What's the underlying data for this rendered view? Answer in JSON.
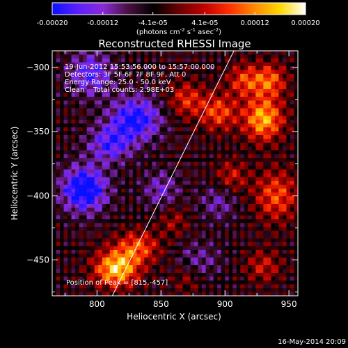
{
  "chart_data": {
    "type": "heatmap",
    "title": "Reconstructed RHESSI Image",
    "xlabel": "Heliocentric X (arcsec)",
    "ylabel": "Heliocentric Y (arcsec)",
    "xlim": [
      765,
      957
    ],
    "ylim": [
      -478,
      -287
    ],
    "x_ticks": [
      800,
      850,
      900,
      950
    ],
    "y_ticks": [
      -300,
      -350,
      -400,
      -450
    ],
    "colorbar": {
      "ticks": [
        "-0.00020",
        "-0.00012",
        "-4.1e-05",
        "4.1e-05",
        "0.00012",
        "0.00020"
      ],
      "tick_values": [
        -0.0002,
        -0.00012,
        -4.1e-05,
        4.1e-05,
        0.00012,
        0.0002
      ],
      "range": [
        -0.0002,
        0.0002
      ],
      "units_label": "(photons cm",
      "units_exp1": "-2",
      "units_mid": " s",
      "units_exp2": "-1",
      "units_mid2": " asec",
      "units_exp3": "-2",
      "units_end": ")",
      "colors": [
        "#0a10ff",
        "#5a20ff",
        "#8a2ad8",
        "#4a1040",
        "#000000",
        "#6a0000",
        "#c00000",
        "#ff3000",
        "#ff8a00",
        "#ffd800",
        "#ffffff"
      ]
    },
    "annotations": [
      "19-Jun-2012 15:53:56.000 to 15:57:00.000",
      "Detectors: 3F 5F 6F 7F 8F 9F, Att 0",
      "Energy Range: 25.0 - 50.0 keV",
      "Clean    Total counts: 2.98E+03"
    ],
    "peak_label": "Position of Peak = [815,-457]",
    "peak": [
      815,
      -457
    ],
    "limb_line": [
      [
        812,
        -478
      ],
      [
        907,
        -287
      ]
    ],
    "sources": [
      {
        "x": 815,
        "y": -457,
        "amp": 0.0002,
        "sx": 12,
        "sy": 10
      },
      {
        "x": 832,
        "y": -440,
        "amp": 0.00012,
        "sx": 12,
        "sy": 9
      },
      {
        "x": 930,
        "y": -340,
        "amp": 0.00018,
        "sx": 11,
        "sy": 12
      },
      {
        "x": 935,
        "y": -310,
        "amp": 0.00013,
        "sx": 9,
        "sy": 9
      },
      {
        "x": 915,
        "y": -310,
        "amp": 0.00011,
        "sx": 9,
        "sy": 9
      },
      {
        "x": 870,
        "y": -325,
        "amp": 0.0001,
        "sx": 10,
        "sy": 10
      },
      {
        "x": 895,
        "y": -335,
        "amp": 0.00012,
        "sx": 10,
        "sy": 10
      },
      {
        "x": 940,
        "y": -400,
        "amp": 0.00012,
        "sx": 12,
        "sy": 14
      },
      {
        "x": 905,
        "y": -385,
        "amp": 8e-05,
        "sx": 9,
        "sy": 9
      },
      {
        "x": 930,
        "y": -455,
        "amp": 8e-05,
        "sx": 10,
        "sy": 9
      },
      {
        "x": 860,
        "y": -420,
        "amp": 6e-05,
        "sx": 8,
        "sy": 8
      },
      {
        "x": 870,
        "y": -465,
        "amp": 5e-05,
        "sx": 8,
        "sy": 8
      },
      {
        "x": 790,
        "y": -395,
        "amp": -0.0002,
        "sx": 12,
        "sy": 12
      },
      {
        "x": 830,
        "y": -340,
        "amp": -0.00016,
        "sx": 14,
        "sy": 12
      },
      {
        "x": 795,
        "y": -305,
        "amp": -0.00012,
        "sx": 12,
        "sy": 12
      },
      {
        "x": 810,
        "y": -360,
        "amp": -0.00012,
        "sx": 12,
        "sy": 10
      },
      {
        "x": 850,
        "y": -395,
        "amp": -8e-05,
        "sx": 10,
        "sy": 10
      },
      {
        "x": 895,
        "y": -405,
        "amp": -7e-05,
        "sx": 10,
        "sy": 10
      },
      {
        "x": 880,
        "y": -450,
        "amp": -6e-05,
        "sx": 12,
        "sy": 10
      }
    ]
  },
  "footer": {
    "timestamp": "16-May-2014 20:09"
  }
}
